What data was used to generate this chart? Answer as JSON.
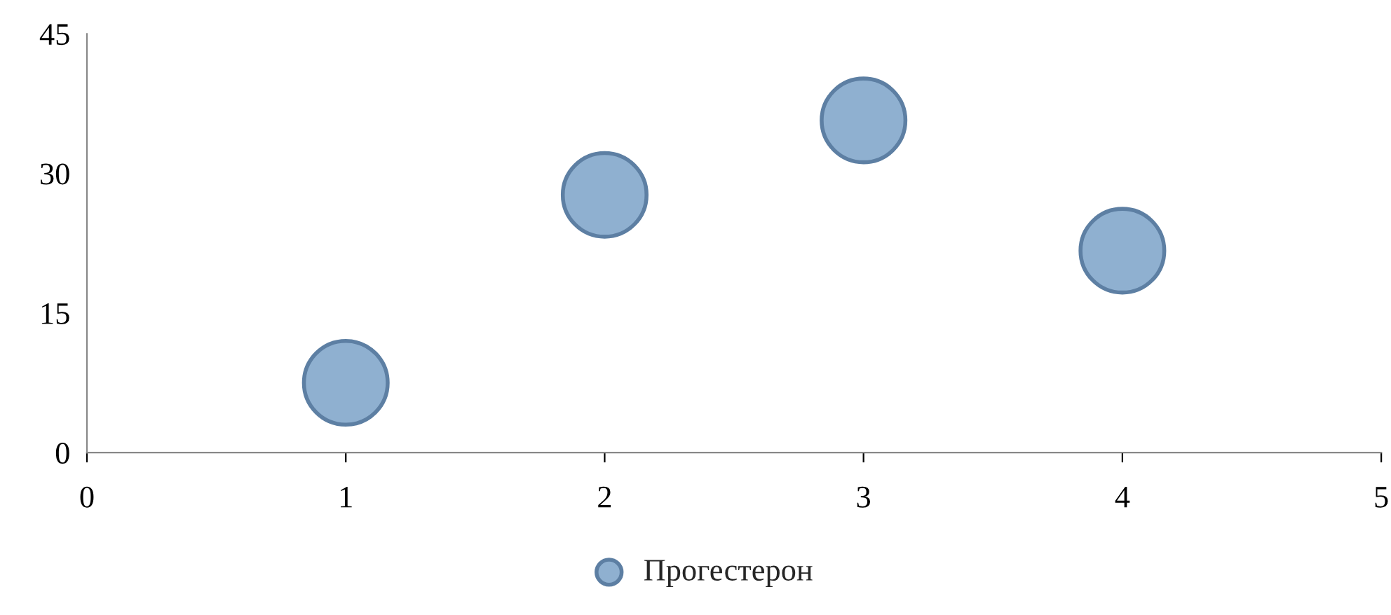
{
  "chart_data": {
    "type": "scatter",
    "x": [
      1,
      2,
      3,
      4
    ],
    "series": [
      {
        "name": "Прогестерон",
        "color": "#8fb0d0",
        "values": [
          7.5,
          27.7,
          35.7,
          21.7
        ]
      }
    ],
    "xlim": [
      0,
      5
    ],
    "xticks": [
      0,
      1,
      2,
      3,
      4,
      5
    ],
    "ylim": [
      0,
      45
    ],
    "yticks": [
      0,
      15,
      30,
      45
    ],
    "marker": "circle",
    "legend": "bottom",
    "grid": false
  }
}
